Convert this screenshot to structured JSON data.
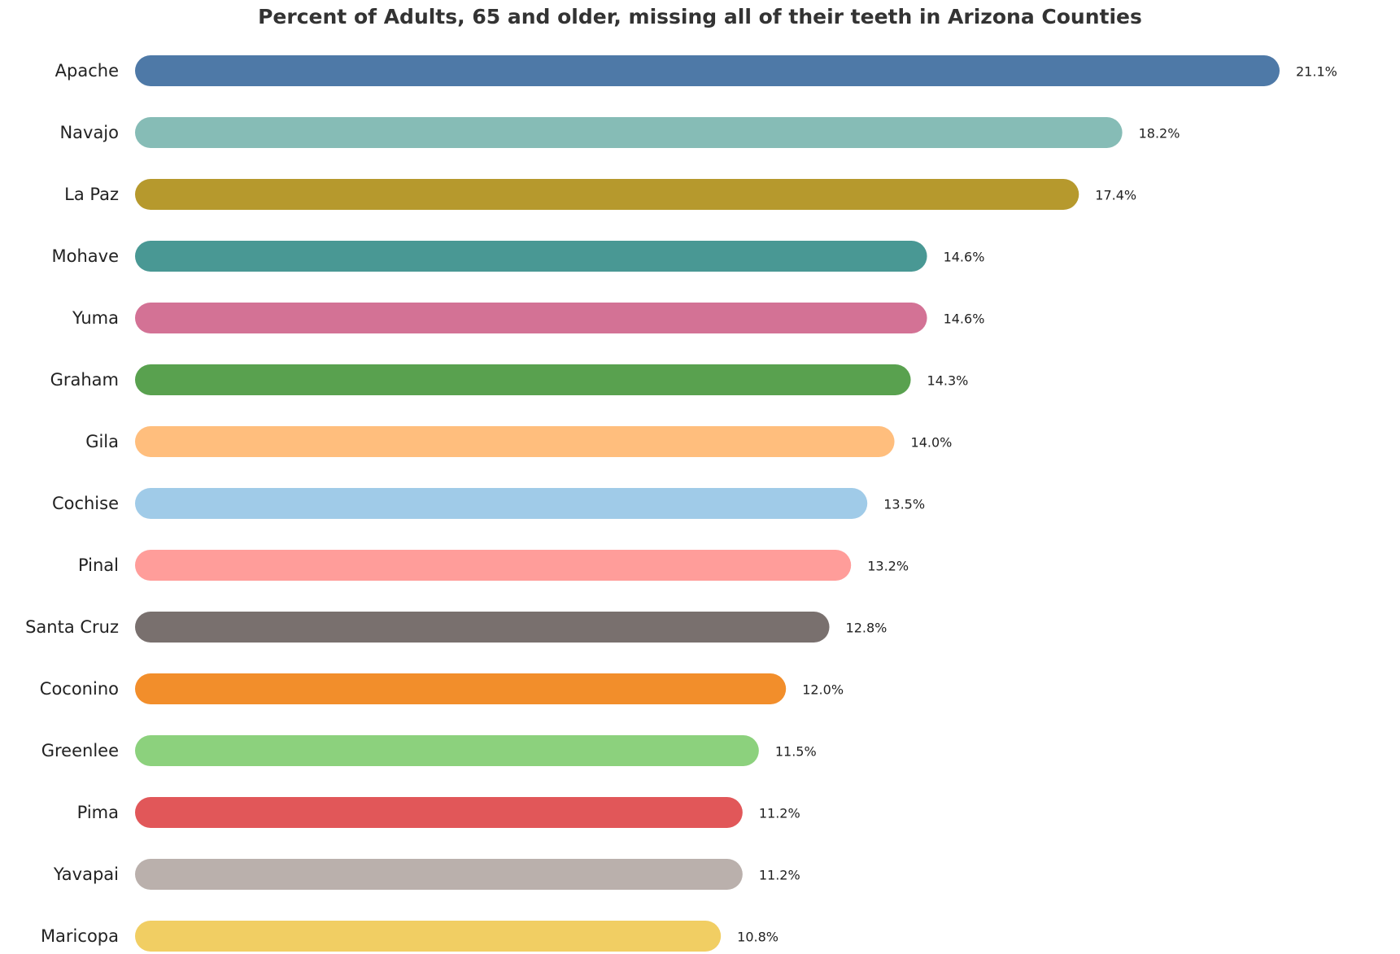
{
  "chart_data": {
    "type": "bar",
    "orientation": "horizontal",
    "title": "Percent of Adults, 65 and older, missing all of their teeth in Arizona Counties",
    "xlabel": "",
    "ylabel": "",
    "xlim": [
      0,
      21.1
    ],
    "grid": false,
    "legend": "none",
    "value_suffix": "%",
    "categories": [
      "Apache",
      "Navajo",
      "La Paz",
      "Mohave",
      "Yuma",
      "Graham",
      "Gila",
      "Cochise",
      "Pinal",
      "Santa Cruz",
      "Coconino",
      "Greenlee",
      "Pima",
      "Yavapai",
      "Maricopa"
    ],
    "values": [
      21.1,
      18.2,
      17.4,
      14.6,
      14.6,
      14.3,
      14.0,
      13.5,
      13.2,
      12.8,
      12.0,
      11.5,
      11.2,
      11.2,
      10.8
    ],
    "value_labels": [
      "21.1%",
      "18.2%",
      "17.4%",
      "14.6%",
      "14.6%",
      "14.3%",
      "14.0%",
      "13.5%",
      "13.2%",
      "12.8%",
      "12.0%",
      "11.5%",
      "11.2%",
      "11.2%",
      "10.8%"
    ],
    "colors": [
      "#4e79a7",
      "#86bcb6",
      "#b6992d",
      "#499894",
      "#d37295",
      "#59a14f",
      "#ffbe7d",
      "#a0cbe8",
      "#ff9d9a",
      "#79706e",
      "#f28e2b",
      "#8cd17d",
      "#e15759",
      "#bab0ac",
      "#f1ce63"
    ]
  }
}
